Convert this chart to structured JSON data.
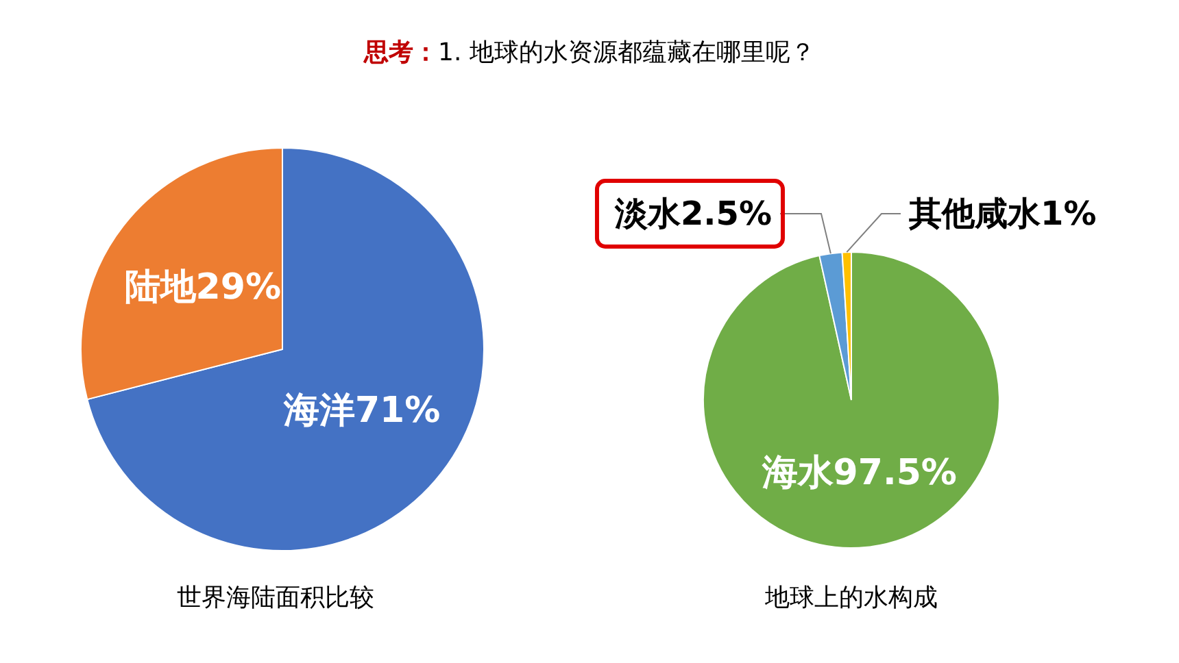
{
  "chart_data": [
    {
      "type": "pie",
      "title": "世界海陆面积比较",
      "annotations": [
        "思考：",
        "1. 地球的水资源都蕴藏在哪里呢？"
      ],
      "categories": [
        "海洋",
        "陆地"
      ],
      "values": [
        71,
        29
      ],
      "value_labels": [
        "71%",
        "29%"
      ],
      "colors": [
        "#4472c4",
        "#ed7d31"
      ],
      "legend": false
    },
    {
      "type": "pie",
      "title": "地球上的水构成",
      "categories": [
        "海水",
        "淡水",
        "其他咸水"
      ],
      "values": [
        97.5,
        2.5,
        1
      ],
      "value_labels": [
        "97.5%",
        "2.5%",
        "1%"
      ],
      "colors": [
        "#70ad47",
        "#5b9bd5",
        "#ffc000"
      ],
      "legend": false
    }
  ]
}
